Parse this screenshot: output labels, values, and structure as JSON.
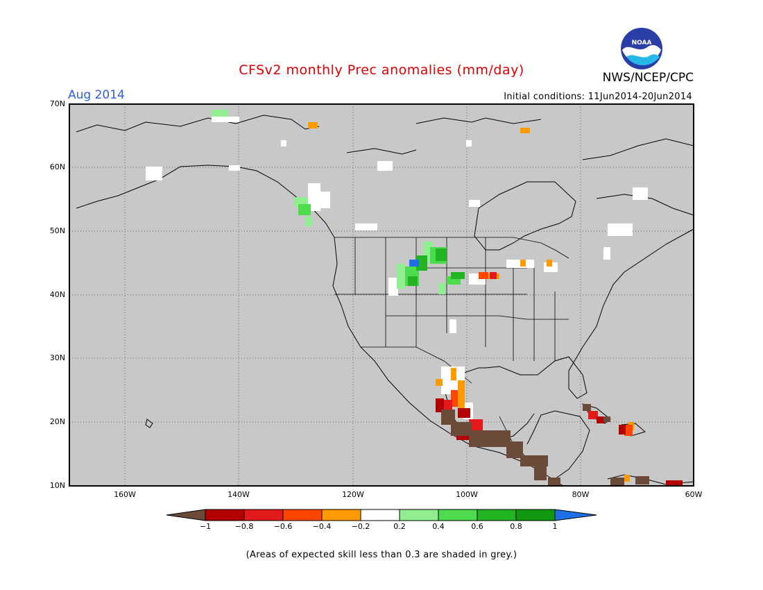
{
  "header": {
    "title": "CFSv2 monthly Prec anomalies (mm/day)",
    "month": "Aug 2014",
    "initial_conditions": "Initial conditions: 11Jun2014-20Jun2014",
    "org": "NWS/NCEP/CPC",
    "logo_text": "NOAA"
  },
  "map": {
    "background_color": "#c8c8c8",
    "lat_ticks": [
      "70N",
      "60N",
      "50N",
      "40N",
      "30N",
      "20N",
      "10N"
    ],
    "lon_ticks": [
      "160W",
      "140W",
      "120W",
      "100W",
      "80W",
      "60W"
    ]
  },
  "colorbar": {
    "labels": [
      "−1",
      "−0.8",
      "−0.6",
      "−0.4",
      "−0.2",
      "0.2",
      "0.4",
      "0.6",
      "0.8",
      "1"
    ],
    "colors": [
      "#6b4a3a",
      "#b30000",
      "#e31a1c",
      "#ff4500",
      "#ff9a00",
      "#ffffff",
      "#90ee90",
      "#4ddc4d",
      "#22b422",
      "#109810",
      "#1e6fe6"
    ]
  },
  "footnote": "(Areas of expected skill less than 0.3 are shaded in grey.)"
}
